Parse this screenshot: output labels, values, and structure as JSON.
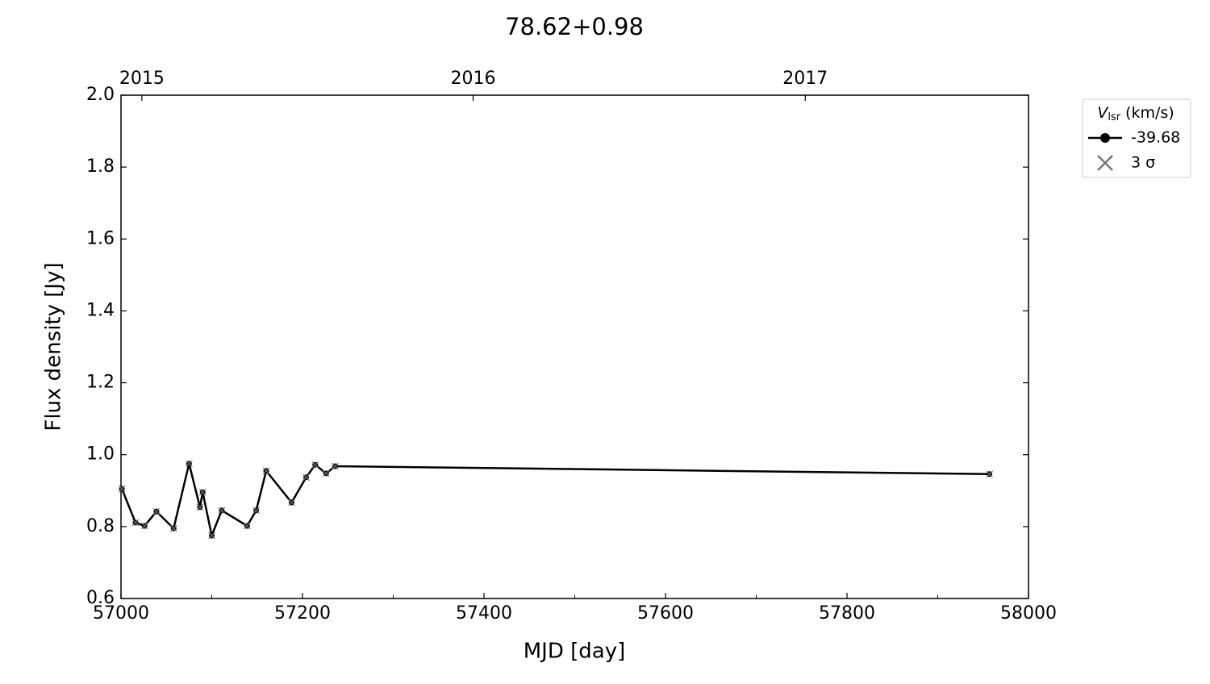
{
  "chart_data": {
    "type": "line",
    "title": "78.62+0.98",
    "xlabel": "MJD [day]",
    "ylabel": "Flux density [Jy]",
    "xlim": [
      57000,
      58000
    ],
    "ylim": [
      0.6,
      2.0
    ],
    "xticks": [
      57000,
      57200,
      57400,
      57600,
      57800,
      58000
    ],
    "xminorticks": [
      57100,
      57300,
      57500,
      57700,
      57900
    ],
    "yticks": [
      0.6,
      0.8,
      {
        "value": 1,
        "label": "1.0"
      },
      1.2,
      1.4,
      1.6,
      1.8,
      {
        "value": 2,
        "label": "2.0"
      }
    ],
    "x2ticks": [
      {
        "value": 57023,
        "label": "2015"
      },
      {
        "value": 57388,
        "label": "2016"
      },
      {
        "value": 57754,
        "label": "2017"
      }
    ],
    "legend_title": {
      "symbol": "V",
      "subscript": "lsr",
      "unit": "(km/s)"
    },
    "legend_position": "outside upper right",
    "x": [
      57001,
      57016,
      57026,
      57039,
      57058,
      57075,
      57087,
      57090,
      57100,
      57111,
      57139,
      57149,
      57160,
      57188,
      57204,
      57214,
      57226,
      57236,
      57957
    ],
    "series": [
      {
        "name": "-39.68",
        "color": "#000000",
        "marker": "circle",
        "values": [
          0.905,
          0.811,
          0.802,
          0.842,
          0.795,
          0.975,
          0.854,
          0.896,
          0.775,
          0.845,
          0.802,
          0.845,
          0.955,
          0.867,
          0.937,
          0.972,
          0.948,
          0.968,
          0.946
        ]
      },
      {
        "name": "3 σ",
        "color": "#777777",
        "marker": "x",
        "values": [
          0.905,
          0.811,
          0.802,
          0.842,
          0.795,
          0.975,
          0.854,
          0.896,
          0.775,
          0.845,
          0.802,
          0.845,
          0.955,
          0.867,
          0.937,
          0.972,
          0.948,
          0.968,
          0.946
        ]
      }
    ]
  }
}
